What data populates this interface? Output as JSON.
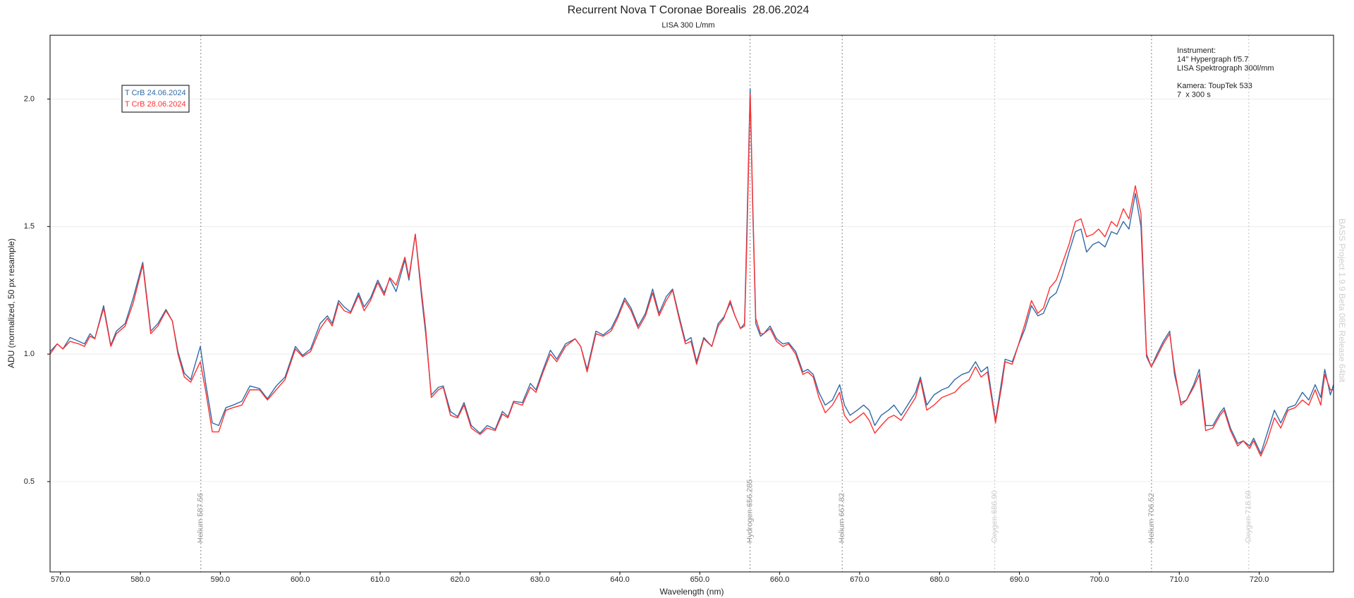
{
  "chart_data": {
    "type": "line",
    "title": "Recurrent Nova T Coronae Borealis  28.06.2024",
    "subtitle": "LISA 300 L/mm",
    "x_label": "Wavelength (nm)",
    "y_label": "ADU (normalized, 50 px resample)",
    "watermark": "BASS Project 1.9.9 Beta 08E Release 64bit",
    "instrument": [
      "Instrument:",
      "14'' Hypergraph f/5.7",
      "LISA Spektrograph 300l/mm"
    ],
    "camera": [
      "Kamera: ToupTek 533",
      "7  x 300 s"
    ],
    "legend": "top-left",
    "grid": true,
    "xlim": [
      568.7,
      729.3
    ],
    "ylim": [
      0.146,
      2.25
    ],
    "xticks": [
      {
        "value": 570,
        "label": "570.0"
      },
      {
        "value": 580,
        "label": "580.0"
      },
      {
        "value": 590,
        "label": "590.0"
      },
      {
        "value": 600,
        "label": "600.0"
      },
      {
        "value": 610,
        "label": "610.0"
      },
      {
        "value": 620,
        "label": "620.0"
      },
      {
        "value": 630,
        "label": "630.0"
      },
      {
        "value": 640,
        "label": "640.0"
      },
      {
        "value": 650,
        "label": "650.0"
      },
      {
        "value": 660,
        "label": "660.0"
      },
      {
        "value": 670,
        "label": "670.0"
      },
      {
        "value": 680,
        "label": "680.0"
      },
      {
        "value": 690,
        "label": "690.0"
      },
      {
        "value": 700,
        "label": "700.0"
      },
      {
        "value": 710,
        "label": "710.0"
      },
      {
        "value": 720,
        "label": "720.0"
      }
    ],
    "yticks": [
      0.5,
      {
        "value": 1,
        "label": "1.0"
      },
      1.5,
      {
        "value": 2,
        "label": "2.0"
      }
    ],
    "annotations": [
      {
        "x": 587.56,
        "label": "Helium 587.56",
        "color": "#999999"
      },
      {
        "x": 656.285,
        "label": "Hydrogen 656.285",
        "color": "#999999"
      },
      {
        "x": 667.82,
        "label": "Helium 667.82",
        "color": "#999999"
      },
      {
        "x": 686.9,
        "label": "Oxygen 686.90",
        "color": "#cccccc"
      },
      {
        "x": 706.52,
        "label": "Helium 706.52",
        "color": "#999999"
      },
      {
        "x": 718.69,
        "label": "Oxygen 718.69",
        "color": "#cccccc"
      }
    ],
    "x": [
      568.7,
      569.6,
      570.3,
      571.2,
      572.3,
      573.0,
      573.7,
      574.3,
      575.4,
      576.3,
      577.0,
      578.1,
      579.1,
      580.3,
      581.3,
      582.2,
      583.2,
      584.0,
      584.7,
      585.5,
      586.3,
      587.5,
      588.2,
      589.0,
      589.8,
      590.7,
      591.6,
      592.7,
      593.7,
      594.9,
      595.9,
      597.0,
      598.1,
      599.4,
      600.3,
      601.3,
      602.5,
      603.4,
      604.0,
      604.8,
      605.5,
      606.3,
      607.3,
      608.0,
      608.8,
      609.7,
      610.5,
      611.2,
      612.0,
      613.1,
      613.6,
      614.4,
      615.2,
      615.7,
      616.4,
      617.3,
      617.9,
      618.8,
      619.7,
      620.5,
      621.4,
      622.5,
      623.4,
      624.4,
      625.3,
      626.0,
      626.7,
      627.8,
      628.8,
      629.5,
      630.4,
      631.3,
      632.1,
      633.2,
      634.4,
      635.1,
      635.9,
      637.0,
      637.9,
      638.9,
      639.7,
      640.6,
      641.4,
      642.3,
      643.2,
      644.1,
      644.9,
      645.8,
      646.6,
      647.4,
      648.2,
      648.9,
      649.6,
      650.5,
      651.5,
      652.3,
      653.0,
      653.8,
      654.4,
      655.1,
      655.6,
      655.9,
      656.3,
      656.6,
      657.0,
      657.6,
      658.0,
      658.8,
      659.6,
      660.4,
      661.1,
      662.0,
      662.9,
      663.5,
      664.2,
      664.9,
      665.7,
      666.6,
      667.5,
      668.1,
      668.8,
      669.7,
      670.5,
      671.2,
      671.9,
      672.7,
      673.6,
      674.3,
      675.2,
      676.0,
      677.0,
      677.6,
      678.4,
      679.3,
      680.3,
      681.1,
      681.9,
      682.8,
      683.7,
      684.5,
      685.2,
      686.0,
      687.0,
      687.8,
      688.2,
      689.1,
      689.8,
      690.7,
      691.5,
      692.3,
      693.0,
      693.8,
      694.6,
      695.3,
      696.2,
      697.0,
      697.7,
      698.4,
      699.2,
      699.9,
      700.7,
      701.5,
      702.2,
      703.0,
      703.7,
      704.5,
      705.2,
      705.9,
      706.5,
      707.2,
      708.0,
      708.8,
      709.4,
      710.2,
      710.9,
      711.8,
      712.5,
      713.3,
      714.2,
      715.1,
      715.6,
      716.4,
      717.3,
      718.0,
      718.8,
      719.3,
      720.2,
      721.0,
      721.9,
      722.7,
      723.6,
      724.5,
      725.4,
      726.2,
      727.0,
      727.7,
      728.2,
      728.9,
      729.3
    ],
    "series": [
      {
        "name": "T CrB 24.06.2024",
        "color": "#2f6ba8",
        "values": [
          1.01,
          1.04,
          1.02,
          1.065,
          1.05,
          1.04,
          1.08,
          1.06,
          1.19,
          1.035,
          1.09,
          1.12,
          1.22,
          1.36,
          1.09,
          1.12,
          1.175,
          1.13,
          1.01,
          0.925,
          0.9,
          1.03,
          0.88,
          0.73,
          0.72,
          0.79,
          0.8,
          0.815,
          0.875,
          0.865,
          0.825,
          0.875,
          0.91,
          1.03,
          0.995,
          1.02,
          1.12,
          1.15,
          1.12,
          1.21,
          1.185,
          1.165,
          1.24,
          1.185,
          1.22,
          1.29,
          1.24,
          1.295,
          1.245,
          1.37,
          1.29,
          1.47,
          1.22,
          1.08,
          0.84,
          0.87,
          0.875,
          0.775,
          0.755,
          0.81,
          0.72,
          0.69,
          0.72,
          0.705,
          0.775,
          0.755,
          0.815,
          0.81,
          0.885,
          0.86,
          0.94,
          1.015,
          0.98,
          1.04,
          1.06,
          1.03,
          0.94,
          1.09,
          1.075,
          1.1,
          1.15,
          1.22,
          1.18,
          1.11,
          1.16,
          1.255,
          1.16,
          1.225,
          1.255,
          1.15,
          1.05,
          1.065,
          0.97,
          1.065,
          1.03,
          1.12,
          1.145,
          1.2,
          1.15,
          1.1,
          1.12,
          1.5,
          2.04,
          1.6,
          1.12,
          1.07,
          1.08,
          1.11,
          1.06,
          1.04,
          1.045,
          1.01,
          0.93,
          0.94,
          0.92,
          0.85,
          0.8,
          0.82,
          0.88,
          0.8,
          0.76,
          0.78,
          0.8,
          0.78,
          0.72,
          0.76,
          0.78,
          0.8,
          0.76,
          0.8,
          0.85,
          0.91,
          0.8,
          0.84,
          0.86,
          0.87,
          0.9,
          0.92,
          0.93,
          0.97,
          0.93,
          0.95,
          0.74,
          0.9,
          0.98,
          0.97,
          1.03,
          1.1,
          1.19,
          1.15,
          1.16,
          1.22,
          1.24,
          1.3,
          1.4,
          1.48,
          1.49,
          1.4,
          1.43,
          1.44,
          1.42,
          1.48,
          1.47,
          1.52,
          1.49,
          1.63,
          1.5,
          0.99,
          0.95,
          1.0,
          1.05,
          1.09,
          0.92,
          0.81,
          0.82,
          0.88,
          0.94,
          0.72,
          0.72,
          0.77,
          0.79,
          0.71,
          0.65,
          0.66,
          0.64,
          0.67,
          0.61,
          0.69,
          0.78,
          0.73,
          0.79,
          0.8,
          0.85,
          0.82,
          0.88,
          0.83,
          0.94,
          0.84,
          0.88
        ]
      },
      {
        "name": "T CrB 28.06.2024",
        "color": "#ff3030",
        "values": [
          1.0,
          1.04,
          1.02,
          1.05,
          1.04,
          1.03,
          1.07,
          1.06,
          1.18,
          1.03,
          1.08,
          1.11,
          1.2,
          1.35,
          1.08,
          1.11,
          1.17,
          1.13,
          1.0,
          0.91,
          0.89,
          0.97,
          0.85,
          0.695,
          0.695,
          0.78,
          0.79,
          0.8,
          0.86,
          0.86,
          0.82,
          0.86,
          0.9,
          1.02,
          0.99,
          1.01,
          1.1,
          1.14,
          1.11,
          1.2,
          1.17,
          1.16,
          1.23,
          1.17,
          1.21,
          1.28,
          1.23,
          1.3,
          1.27,
          1.38,
          1.3,
          1.47,
          1.24,
          1.1,
          0.83,
          0.86,
          0.87,
          0.76,
          0.75,
          0.8,
          0.71,
          0.685,
          0.71,
          0.7,
          0.765,
          0.75,
          0.81,
          0.8,
          0.87,
          0.85,
          0.93,
          1.0,
          0.97,
          1.03,
          1.06,
          1.03,
          0.93,
          1.08,
          1.07,
          1.09,
          1.14,
          1.21,
          1.17,
          1.1,
          1.15,
          1.24,
          1.15,
          1.21,
          1.25,
          1.14,
          1.04,
          1.05,
          0.96,
          1.06,
          1.03,
          1.11,
          1.14,
          1.21,
          1.15,
          1.1,
          1.11,
          1.45,
          2.02,
          1.62,
          1.14,
          1.08,
          1.08,
          1.1,
          1.05,
          1.03,
          1.04,
          1.0,
          0.92,
          0.93,
          0.91,
          0.83,
          0.77,
          0.8,
          0.85,
          0.76,
          0.73,
          0.75,
          0.77,
          0.74,
          0.69,
          0.72,
          0.75,
          0.76,
          0.74,
          0.78,
          0.83,
          0.9,
          0.78,
          0.8,
          0.83,
          0.84,
          0.85,
          0.88,
          0.9,
          0.95,
          0.91,
          0.93,
          0.73,
          0.88,
          0.97,
          0.96,
          1.03,
          1.12,
          1.21,
          1.16,
          1.18,
          1.26,
          1.29,
          1.35,
          1.43,
          1.52,
          1.53,
          1.46,
          1.47,
          1.49,
          1.46,
          1.52,
          1.5,
          1.57,
          1.53,
          1.66,
          1.55,
          1.0,
          0.95,
          0.99,
          1.04,
          1.08,
          0.94,
          0.8,
          0.82,
          0.87,
          0.92,
          0.7,
          0.71,
          0.76,
          0.78,
          0.7,
          0.64,
          0.66,
          0.63,
          0.66,
          0.6,
          0.66,
          0.75,
          0.71,
          0.78,
          0.79,
          0.82,
          0.8,
          0.86,
          0.8,
          0.92,
          0.86,
          0.86
        ]
      }
    ]
  }
}
